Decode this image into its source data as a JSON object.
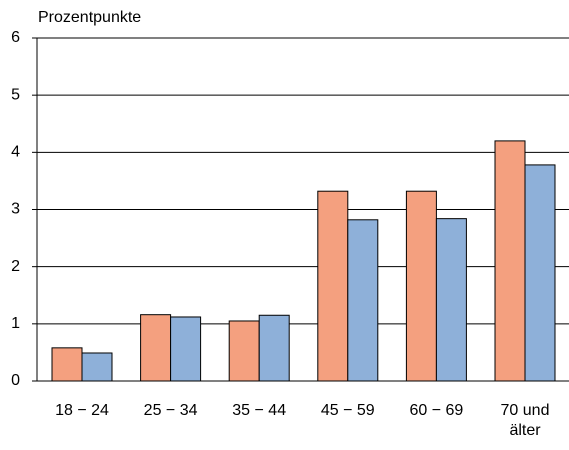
{
  "chart_data": {
    "type": "bar",
    "y_label": "Prozentpunkte",
    "categories": [
      "18 − 24",
      "25 − 34",
      "35 − 44",
      "45 − 59",
      "60 − 69",
      "70 und älter"
    ],
    "series": [
      {
        "color": "#f4a07f",
        "values": [
          0.58,
          1.16,
          1.05,
          3.32,
          3.32,
          4.2
        ]
      },
      {
        "color": "#8eb0d9",
        "values": [
          0.49,
          1.12,
          1.15,
          2.82,
          2.84,
          3.78
        ]
      }
    ],
    "ylim": [
      0,
      6
    ],
    "yticks": [
      0,
      1,
      2,
      3,
      4,
      5,
      6
    ],
    "grid": true
  }
}
